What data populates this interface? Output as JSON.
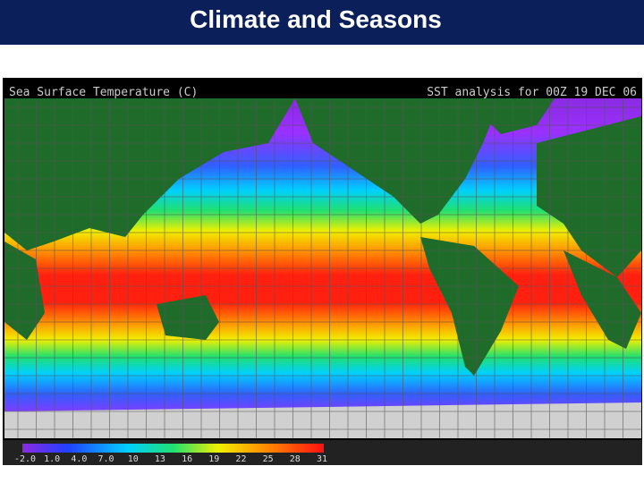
{
  "header": {
    "title": "Climate and Seasons"
  },
  "map": {
    "title": "Sea Surface Temperature (C)",
    "analysis": "SST analysis for 00Z 19 DEC 06",
    "colorbar": {
      "labels": [
        "-2.0",
        "1.0",
        "4.0",
        "7.0",
        "10",
        "13",
        "16",
        "19",
        "22",
        "25",
        "28",
        "31"
      ]
    }
  }
}
